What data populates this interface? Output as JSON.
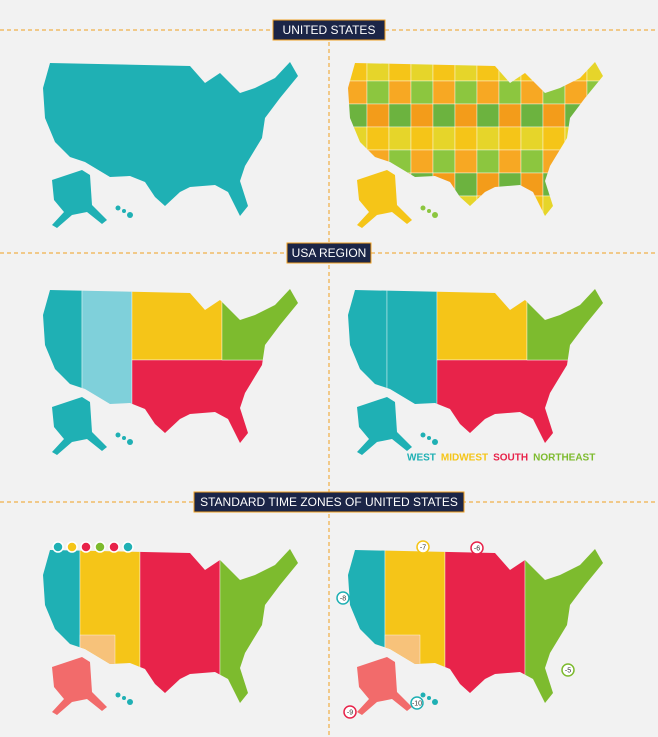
{
  "headers": [
    "UNITED  STATES",
    "USA REGION",
    "STANDARD TIME ZONES OF UNITED STATES"
  ],
  "regions": [
    {
      "label": "WEST",
      "color": "#1fb0b4"
    },
    {
      "label": "MIDWEST",
      "color": "#f5c518"
    },
    {
      "label": "SOUTH",
      "color": "#e8234a"
    },
    {
      "label": "NORTHEAST",
      "color": "#7dbb2e"
    }
  ],
  "time_zones": [
    "-7",
    "-6",
    "-8",
    "-9",
    "-10",
    "-5"
  ]
}
